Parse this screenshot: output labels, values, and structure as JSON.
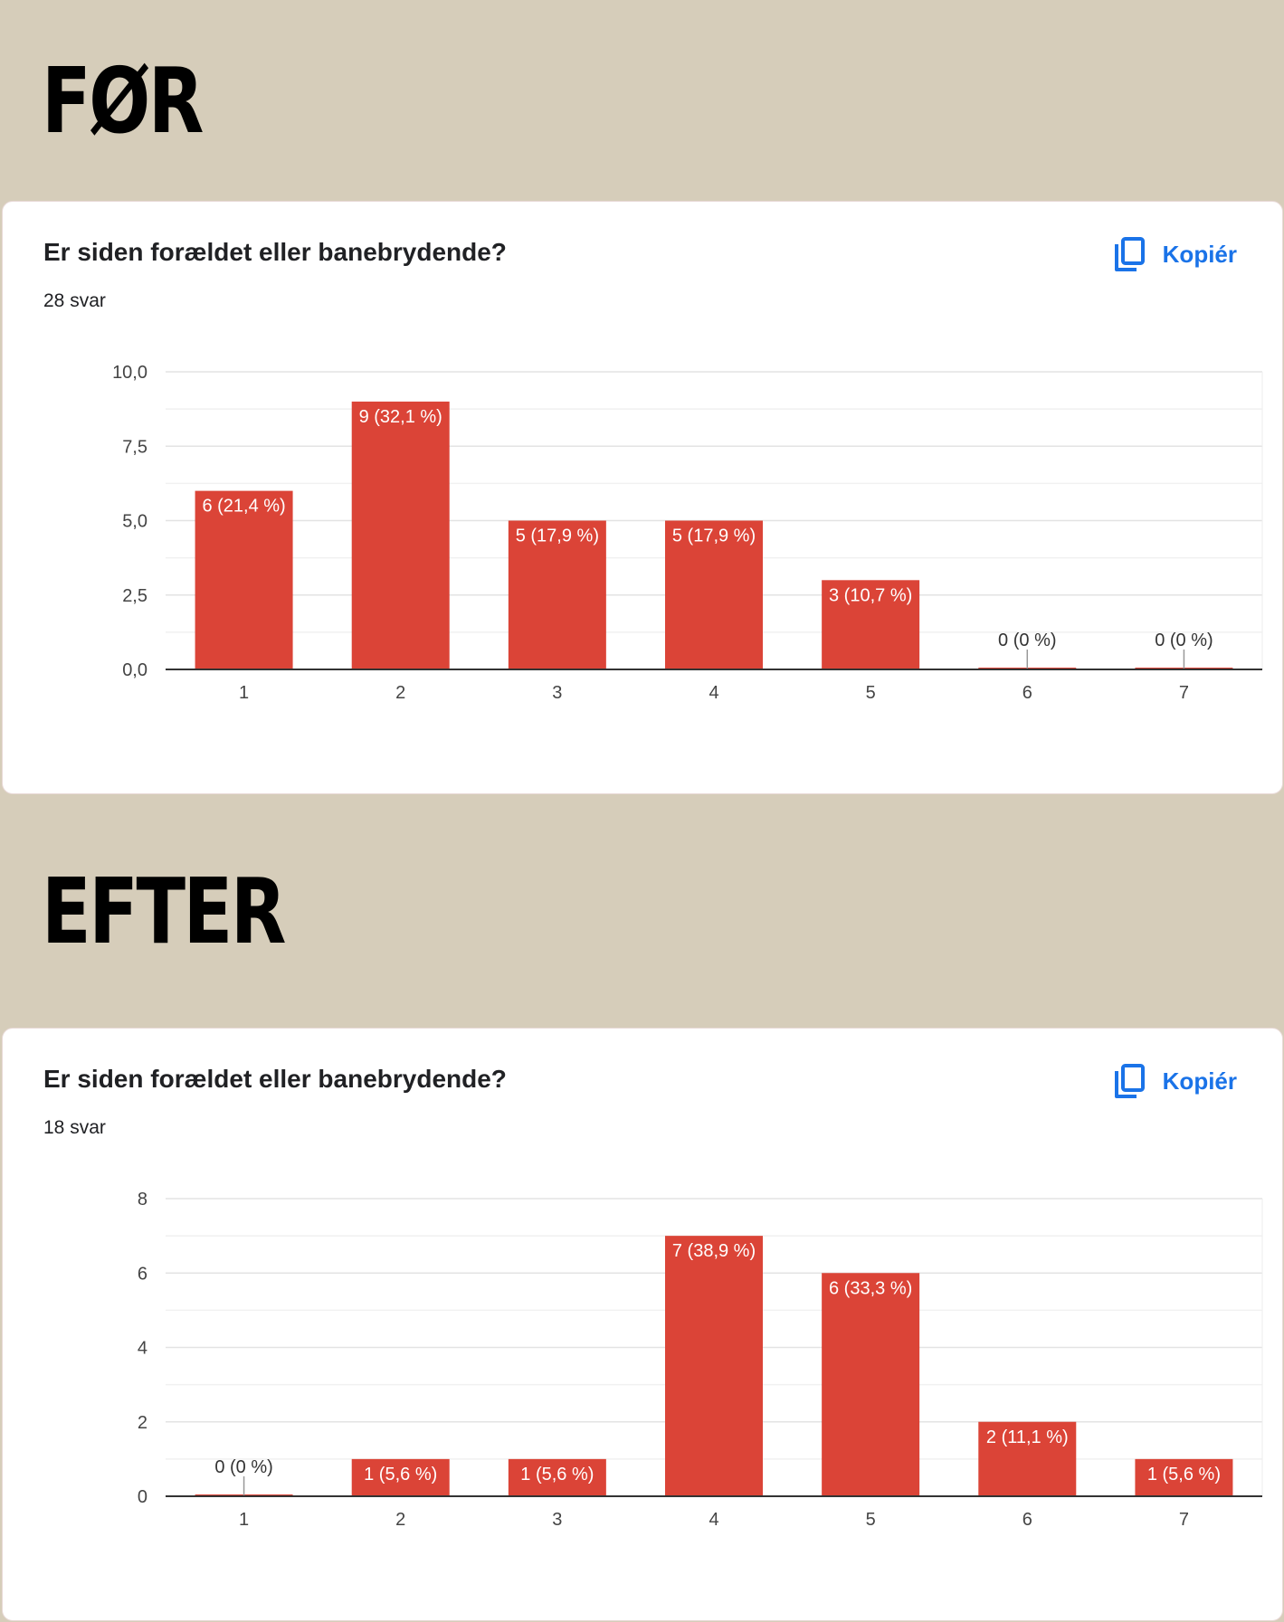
{
  "headings": {
    "before": "FØR",
    "after": "EFTER"
  },
  "colors": {
    "background": "#d6cdba",
    "bar": "#db4437",
    "accent": "#1a73e8",
    "card": "#ffffff"
  },
  "cards": [
    {
      "question": "Er siden forældet eller banebrydende?",
      "responses": "28 svar",
      "copy_label": "Kopiér",
      "copy_icon": "copy-icon"
    },
    {
      "question": "Er siden forældet eller banebrydende?",
      "responses": "18 svar",
      "copy_label": "Kopiér",
      "copy_icon": "copy-icon"
    }
  ],
  "chart_data": [
    {
      "type": "bar",
      "categories": [
        "1",
        "2",
        "3",
        "4",
        "5",
        "6",
        "7"
      ],
      "values": [
        6,
        9,
        5,
        5,
        3,
        0,
        0
      ],
      "value_labels": [
        "6 (21,4 %)",
        "9 (32,1 %)",
        "5 (17,9 %)",
        "5 (17,9 %)",
        "3 (10,7 %)",
        "0 (0 %)",
        "0 (0 %)"
      ],
      "yticks": [
        "0,0",
        "2,5",
        "5,0",
        "7,5",
        "10,0"
      ],
      "ytick_values": [
        0,
        2.5,
        5,
        7.5,
        10
      ],
      "ylim": [
        0,
        10
      ],
      "grid": true,
      "title": "Er siden forældet eller banebrydende?",
      "xlabel": "",
      "ylabel": ""
    },
    {
      "type": "bar",
      "categories": [
        "1",
        "2",
        "3",
        "4",
        "5",
        "6",
        "7"
      ],
      "values": [
        0,
        1,
        1,
        7,
        6,
        2,
        1
      ],
      "value_labels": [
        "0 (0 %)",
        "1 (5,6 %)",
        "1 (5,6 %)",
        "7 (38,9 %)",
        "6 (33,3 %)",
        "2 (11,1 %)",
        "1 (5,6 %)"
      ],
      "yticks": [
        "0",
        "2",
        "4",
        "6",
        "8"
      ],
      "ytick_values": [
        0,
        2,
        4,
        6,
        8
      ],
      "ylim": [
        0,
        8
      ],
      "grid": true,
      "title": "Er siden forældet eller banebrydende?",
      "xlabel": "",
      "ylabel": ""
    }
  ]
}
